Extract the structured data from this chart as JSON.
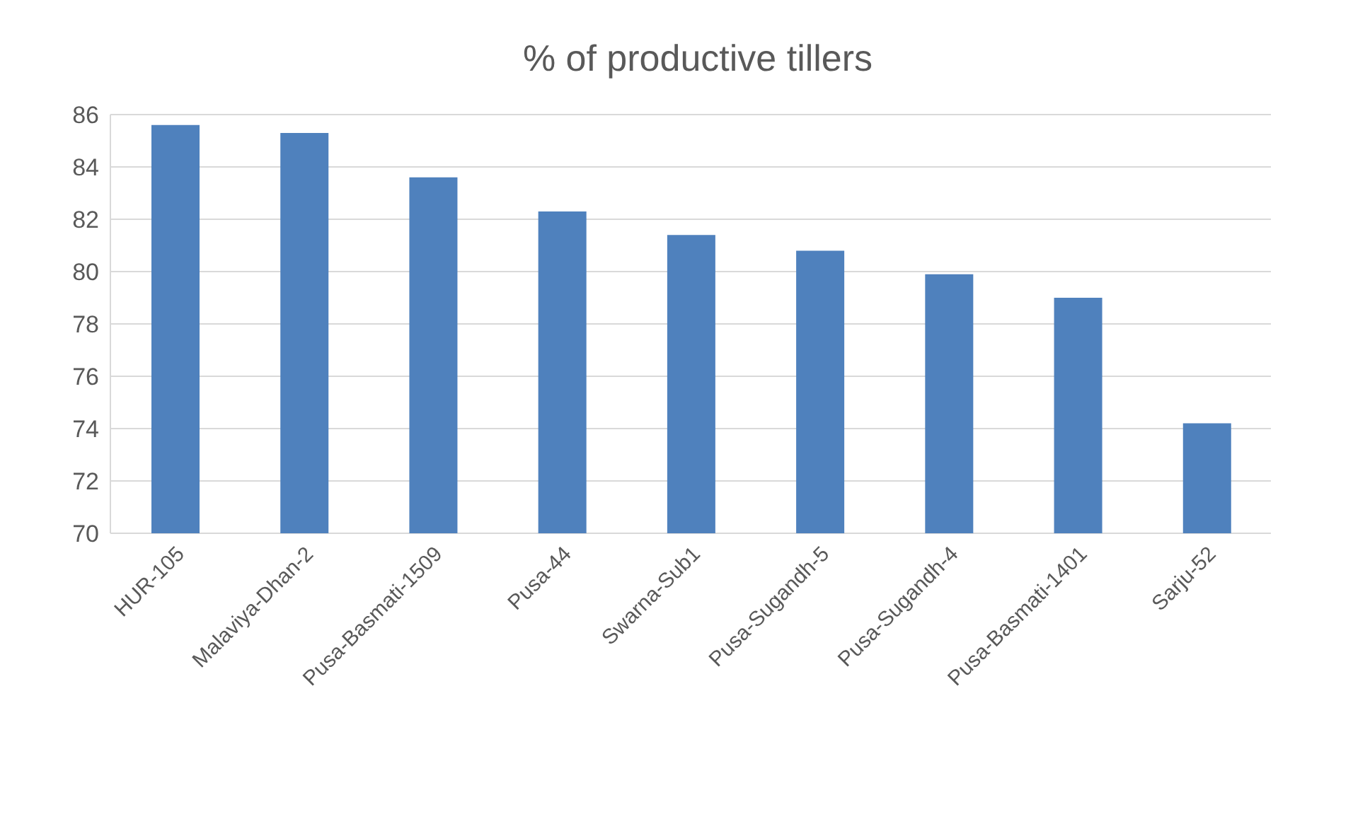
{
  "chart_data": {
    "type": "bar",
    "title": "% of productive tillers",
    "categories": [
      "HUR-105",
      "Malaviya-Dhan-2",
      "Pusa-Basmati-1509",
      "Pusa-44",
      "Swarna-Sub1",
      "Pusa-Sugandh-5",
      "Pusa-Sugandh-4",
      "Pusa-Basmati-1401",
      "Sarju-52"
    ],
    "values": [
      85.6,
      85.3,
      83.6,
      82.3,
      81.4,
      80.8,
      79.9,
      79.0,
      74.2
    ],
    "color": "#4f81bd",
    "ylim": [
      70,
      86
    ],
    "yticks": [
      70,
      72,
      74,
      76,
      78,
      80,
      82,
      84,
      86
    ],
    "grid": "y",
    "legend": false
  }
}
